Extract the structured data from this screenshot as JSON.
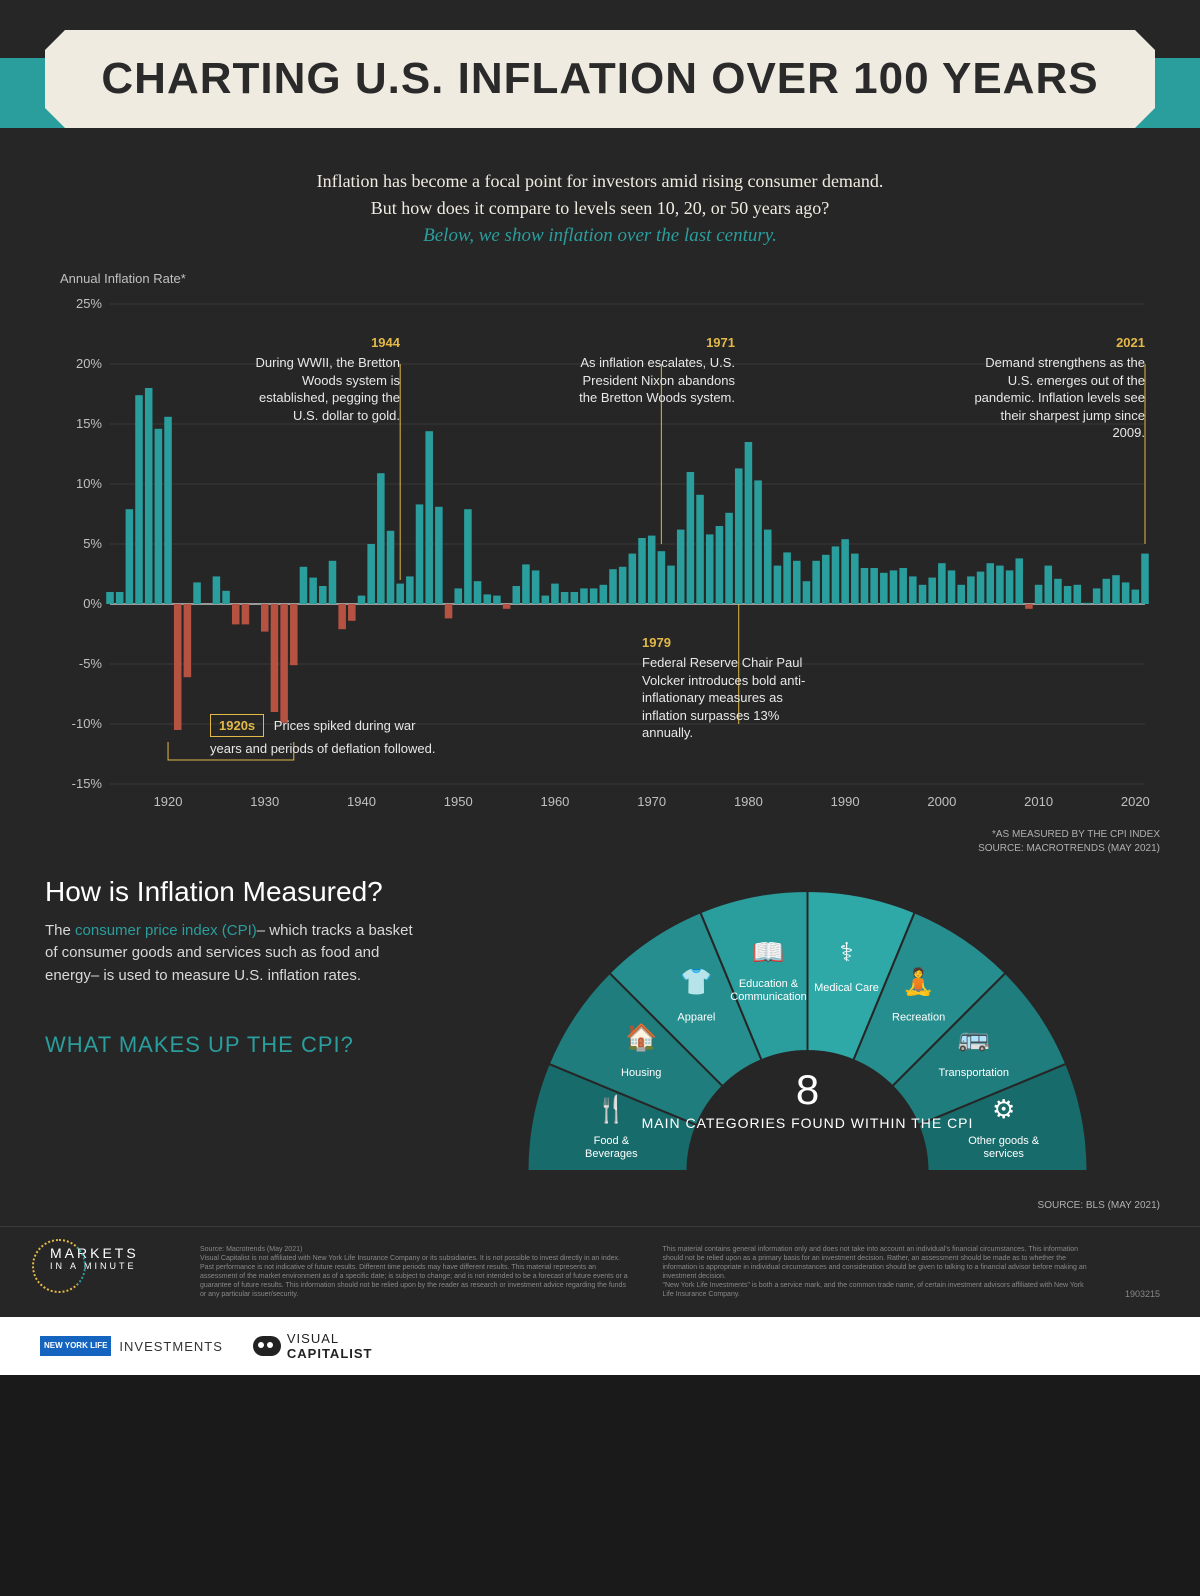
{
  "title": "CHARTING U.S. INFLATION OVER 100 YEARS",
  "intro": {
    "line1": "Inflation has become a focal point for investors amid rising consumer demand.",
    "line2": "But how does it compare to levels seen 10, 20, or 50 years ago?",
    "highlight": "Below, we show inflation over the last century."
  },
  "chart": {
    "y_label": "Annual Inflation Rate*",
    "ylim": [
      -15,
      25
    ],
    "yticks": [
      -15,
      -10,
      -5,
      0,
      5,
      10,
      15,
      20,
      25
    ],
    "xticks": [
      1920,
      1930,
      1940,
      1950,
      1960,
      1970,
      1980,
      1990,
      2000,
      2010,
      2020
    ],
    "x_range": [
      1914,
      2021
    ],
    "bar_width": 0.78,
    "colors": {
      "positive": "#2a9d9d",
      "negative": "#b55242",
      "grid": "#4a4a4a",
      "axis": "#e0e0e0",
      "marker": "#e2b847",
      "bg": "#262626"
    },
    "data": [
      {
        "y": 1914,
        "v": 1.0
      },
      {
        "y": 1915,
        "v": 1.0
      },
      {
        "y": 1916,
        "v": 7.9
      },
      {
        "y": 1917,
        "v": 17.4
      },
      {
        "y": 1918,
        "v": 18.0
      },
      {
        "y": 1919,
        "v": 14.6
      },
      {
        "y": 1920,
        "v": 15.6
      },
      {
        "y": 1921,
        "v": -10.5
      },
      {
        "y": 1922,
        "v": -6.1
      },
      {
        "y": 1923,
        "v": 1.8
      },
      {
        "y": 1924,
        "v": 0.0
      },
      {
        "y": 1925,
        "v": 2.3
      },
      {
        "y": 1926,
        "v": 1.1
      },
      {
        "y": 1927,
        "v": -1.7
      },
      {
        "y": 1928,
        "v": -1.7
      },
      {
        "y": 1929,
        "v": 0.0
      },
      {
        "y": 1930,
        "v": -2.3
      },
      {
        "y": 1931,
        "v": -9.0
      },
      {
        "y": 1932,
        "v": -9.9
      },
      {
        "y": 1933,
        "v": -5.1
      },
      {
        "y": 1934,
        "v": 3.1
      },
      {
        "y": 1935,
        "v": 2.2
      },
      {
        "y": 1936,
        "v": 1.5
      },
      {
        "y": 1937,
        "v": 3.6
      },
      {
        "y": 1938,
        "v": -2.1
      },
      {
        "y": 1939,
        "v": -1.4
      },
      {
        "y": 1940,
        "v": 0.7
      },
      {
        "y": 1941,
        "v": 5.0
      },
      {
        "y": 1942,
        "v": 10.9
      },
      {
        "y": 1943,
        "v": 6.1
      },
      {
        "y": 1944,
        "v": 1.7
      },
      {
        "y": 1945,
        "v": 2.3
      },
      {
        "y": 1946,
        "v": 8.3
      },
      {
        "y": 1947,
        "v": 14.4
      },
      {
        "y": 1948,
        "v": 8.1
      },
      {
        "y": 1949,
        "v": -1.2
      },
      {
        "y": 1950,
        "v": 1.3
      },
      {
        "y": 1951,
        "v": 7.9
      },
      {
        "y": 1952,
        "v": 1.9
      },
      {
        "y": 1953,
        "v": 0.8
      },
      {
        "y": 1954,
        "v": 0.7
      },
      {
        "y": 1955,
        "v": -0.4
      },
      {
        "y": 1956,
        "v": 1.5
      },
      {
        "y": 1957,
        "v": 3.3
      },
      {
        "y": 1958,
        "v": 2.8
      },
      {
        "y": 1959,
        "v": 0.7
      },
      {
        "y": 1960,
        "v": 1.7
      },
      {
        "y": 1961,
        "v": 1.0
      },
      {
        "y": 1962,
        "v": 1.0
      },
      {
        "y": 1963,
        "v": 1.3
      },
      {
        "y": 1964,
        "v": 1.3
      },
      {
        "y": 1965,
        "v": 1.6
      },
      {
        "y": 1966,
        "v": 2.9
      },
      {
        "y": 1967,
        "v": 3.1
      },
      {
        "y": 1968,
        "v": 4.2
      },
      {
        "y": 1969,
        "v": 5.5
      },
      {
        "y": 1970,
        "v": 5.7
      },
      {
        "y": 1971,
        "v": 4.4
      },
      {
        "y": 1972,
        "v": 3.2
      },
      {
        "y": 1973,
        "v": 6.2
      },
      {
        "y": 1974,
        "v": 11.0
      },
      {
        "y": 1975,
        "v": 9.1
      },
      {
        "y": 1976,
        "v": 5.8
      },
      {
        "y": 1977,
        "v": 6.5
      },
      {
        "y": 1978,
        "v": 7.6
      },
      {
        "y": 1979,
        "v": 11.3
      },
      {
        "y": 1980,
        "v": 13.5
      },
      {
        "y": 1981,
        "v": 10.3
      },
      {
        "y": 1982,
        "v": 6.2
      },
      {
        "y": 1983,
        "v": 3.2
      },
      {
        "y": 1984,
        "v": 4.3
      },
      {
        "y": 1985,
        "v": 3.6
      },
      {
        "y": 1986,
        "v": 1.9
      },
      {
        "y": 1987,
        "v": 3.6
      },
      {
        "y": 1988,
        "v": 4.1
      },
      {
        "y": 1989,
        "v": 4.8
      },
      {
        "y": 1990,
        "v": 5.4
      },
      {
        "y": 1991,
        "v": 4.2
      },
      {
        "y": 1992,
        "v": 3.0
      },
      {
        "y": 1993,
        "v": 3.0
      },
      {
        "y": 1994,
        "v": 2.6
      },
      {
        "y": 1995,
        "v": 2.8
      },
      {
        "y": 1996,
        "v": 3.0
      },
      {
        "y": 1997,
        "v": 2.3
      },
      {
        "y": 1998,
        "v": 1.6
      },
      {
        "y": 1999,
        "v": 2.2
      },
      {
        "y": 2000,
        "v": 3.4
      },
      {
        "y": 2001,
        "v": 2.8
      },
      {
        "y": 2002,
        "v": 1.6
      },
      {
        "y": 2003,
        "v": 2.3
      },
      {
        "y": 2004,
        "v": 2.7
      },
      {
        "y": 2005,
        "v": 3.4
      },
      {
        "y": 2006,
        "v": 3.2
      },
      {
        "y": 2007,
        "v": 2.8
      },
      {
        "y": 2008,
        "v": 3.8
      },
      {
        "y": 2009,
        "v": -0.4
      },
      {
        "y": 2010,
        "v": 1.6
      },
      {
        "y": 2011,
        "v": 3.2
      },
      {
        "y": 2012,
        "v": 2.1
      },
      {
        "y": 2013,
        "v": 1.5
      },
      {
        "y": 2014,
        "v": 1.6
      },
      {
        "y": 2015,
        "v": 0.1
      },
      {
        "y": 2016,
        "v": 1.3
      },
      {
        "y": 2017,
        "v": 2.1
      },
      {
        "y": 2018,
        "v": 2.4
      },
      {
        "y": 2019,
        "v": 1.8
      },
      {
        "y": 2020,
        "v": 1.2
      },
      {
        "y": 2021,
        "v": 4.2
      }
    ],
    "source1": "*AS MEASURED BY THE CPI INDEX",
    "source2": "SOURCE: MACROTRENDS (MAY 2021)"
  },
  "annotations": {
    "a1944": {
      "year": "1944",
      "text": "During WWII, the Bretton Woods system is established, pegging the U.S. dollar to gold."
    },
    "a1971": {
      "year": "1971",
      "text": "As inflation escalates, U.S. President Nixon abandons the Bretton Woods system."
    },
    "a2021": {
      "year": "2021",
      "text": "Demand strengthens as the U.S. emerges out of the pandemic. Inflation levels see their sharpest jump since 2009."
    },
    "a1979": {
      "year": "1979",
      "text": "Federal Reserve Chair Paul Volcker introduces bold anti-inflationary measures as inflation surpasses 13% annually."
    },
    "a1920s": {
      "year": "1920s",
      "text": "Prices spiked during war years and periods of deflation followed."
    }
  },
  "measured": {
    "heading": "How is Inflation Measured?",
    "body_pre": "The ",
    "body_link": "consumer price index (CPI)",
    "body_post": "– which tracks a basket of consumer goods and services such as food and energy– is used to measure U.S. inflation rates.",
    "makes_up": "WHAT MAKES UP THE CPI?"
  },
  "arc": {
    "center_big": "8",
    "center_sub": "MAIN CATEGORIES FOUND WITHIN THE CPI",
    "segments": [
      {
        "label": "Food & Beverages",
        "color": "#186b6b"
      },
      {
        "label": "Housing",
        "color": "#1f7d7d"
      },
      {
        "label": "Apparel",
        "color": "#268e8e"
      },
      {
        "label": "Education & Communication",
        "color": "#2a9d9d"
      },
      {
        "label": "Medical Care",
        "color": "#2fa8a8"
      },
      {
        "label": "Recreation",
        "color": "#268e8e"
      },
      {
        "label": "Transportation",
        "color": "#1f7d7d"
      },
      {
        "label": "Other goods & services",
        "color": "#186b6b"
      }
    ],
    "source": "SOURCE: BLS (MAY 2021)"
  },
  "footer": {
    "markets1": "MARKETS",
    "markets2": "IN A",
    "markets3": "MINUTE",
    "disclaimer_src": "Source: Macrotrends (May 2021)",
    "disclaimer1": "Visual Capitalist is not affiliated with New York Life Insurance Company or its subsidiaries. It is not possible to invest directly in an index. Past performance is not indicative of future results. Different time periods may have different results. This material represents an assessment of the market environment as of a specific date; is subject to change; and is not intended to be a forecast of future events or a guarantee of future results. This information should not be relied upon by the reader as research or investment advice regarding the funds or any particular issuer/security.",
    "disclaimer2": "This material contains general information only and does not take into account an individual's financial circumstances. This information should not be relied upon as a primary basis for an investment decision. Rather, an assessment should be made as to whether the information is appropriate in individual circumstances and consideration should be given to talking to a financial advisor before making an investment decision.",
    "disclaimer3": "\"New York Life Investments\" is both a service mark, and the common trade name, of certain investment advisors affiliated with New York Life Insurance Company.",
    "ref": "1903215",
    "ny_box": "NEW YORK LIFE",
    "ny_text": "INVESTMENTS",
    "vc_text1": "VISUAL",
    "vc_text2": "CAPITALIST"
  }
}
